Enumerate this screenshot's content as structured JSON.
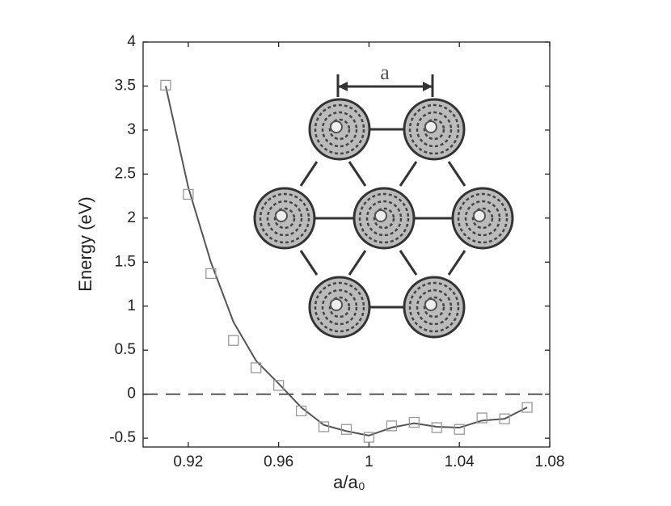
{
  "chart_data": {
    "type": "line_scatter",
    "xlabel": "a/a₀",
    "ylabel": "Energy (eV)",
    "xlim": [
      0.9,
      1.08
    ],
    "ylim": [
      -0.6,
      4
    ],
    "xticks": [
      0.92,
      0.96,
      1,
      1.04,
      1.08
    ],
    "yticks": [
      -0.5,
      0,
      0.5,
      1,
      1.5,
      2,
      2.5,
      3,
      3.5,
      4
    ],
    "reference_line": 0,
    "annotation": "a",
    "series": [
      {
        "kind": "line",
        "color": "#555555",
        "x": [
          0.91,
          0.92,
          0.93,
          0.94,
          0.95,
          0.96,
          0.97,
          0.98,
          0.99,
          1.0,
          1.01,
          1.02,
          1.03,
          1.04,
          1.05,
          1.06,
          1.07
        ],
        "values": [
          3.5,
          2.35,
          1.5,
          0.82,
          0.38,
          0.12,
          -0.15,
          -0.35,
          -0.42,
          -0.47,
          -0.38,
          -0.33,
          -0.37,
          -0.38,
          -0.3,
          -0.28,
          -0.15
        ]
      },
      {
        "kind": "marker",
        "color": "#999999",
        "x": [
          0.91,
          0.92,
          0.93,
          0.94,
          0.95,
          0.96,
          0.97,
          0.98,
          0.99,
          1.0,
          1.01,
          1.02,
          1.03,
          1.04,
          1.05,
          1.06,
          1.07
        ],
        "values": [
          3.51,
          2.27,
          1.37,
          0.61,
          0.3,
          0.1,
          -0.19,
          -0.37,
          -0.4,
          -0.49,
          -0.36,
          -0.32,
          -0.38,
          -0.4,
          -0.27,
          -0.28,
          -0.15
        ]
      }
    ]
  }
}
